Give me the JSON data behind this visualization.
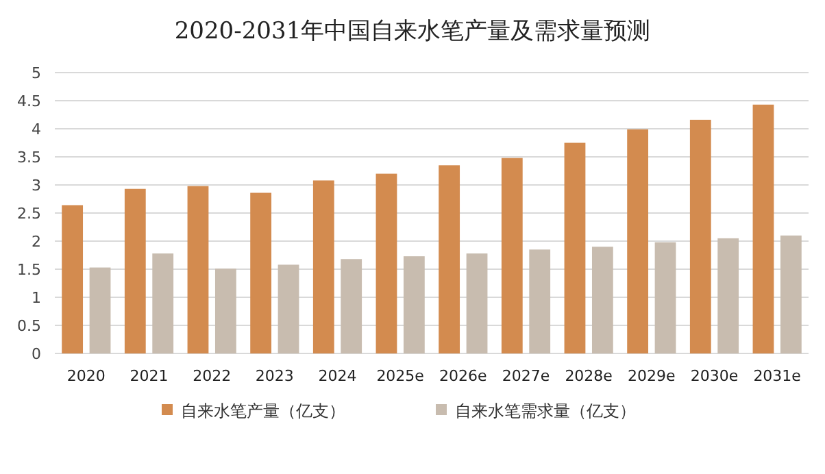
{
  "chart_data": {
    "type": "bar",
    "title": "2020-2031年中国自来水笔产量及需求量预测",
    "categories": [
      "2020",
      "2021",
      "2022",
      "2023",
      "2024",
      "2025e",
      "2026e",
      "2027e",
      "2028e",
      "2029e",
      "2030e",
      "2031e"
    ],
    "series": [
      {
        "name": "自来水笔产量（亿支）",
        "color": "#d38b4f",
        "values": [
          2.64,
          2.93,
          2.98,
          2.86,
          3.08,
          3.2,
          3.35,
          3.48,
          3.75,
          3.99,
          4.16,
          4.43
        ]
      },
      {
        "name": "自来水笔需求量（亿支）",
        "color": "#c8bcaf",
        "values": [
          1.53,
          1.78,
          1.51,
          1.58,
          1.68,
          1.73,
          1.78,
          1.85,
          1.9,
          1.98,
          2.05,
          2.1
        ]
      }
    ],
    "ylim": [
      0,
      5
    ],
    "yticks": [
      0,
      0.5,
      1,
      1.5,
      2,
      2.5,
      3,
      3.5,
      4,
      4.5,
      5
    ],
    "grid": "y",
    "legend": "bottom"
  }
}
